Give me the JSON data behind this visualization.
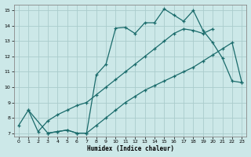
{
  "xlabel": "Humidex (Indice chaleur)",
  "bg_color": "#cce8e8",
  "grid_color": "#aacccc",
  "line_color": "#1a6b6b",
  "xlim": [
    -0.5,
    23.5
  ],
  "ylim": [
    6.8,
    15.4
  ],
  "xticks": [
    0,
    1,
    2,
    3,
    4,
    5,
    6,
    7,
    8,
    9,
    10,
    11,
    12,
    13,
    14,
    15,
    16,
    17,
    18,
    19,
    20,
    21,
    22,
    23
  ],
  "yticks": [
    7,
    8,
    9,
    10,
    11,
    12,
    13,
    14,
    15
  ],
  "line1_x": [
    0,
    1,
    3,
    4,
    5,
    6,
    7,
    8,
    9,
    10,
    11,
    12,
    13,
    14,
    15,
    16,
    17,
    18,
    19,
    20,
    21,
    22,
    23
  ],
  "line1_y": [
    7.5,
    8.5,
    7.0,
    7.1,
    7.2,
    7.0,
    7.0,
    7.5,
    8.0,
    8.5,
    9.0,
    9.4,
    9.8,
    10.1,
    10.4,
    10.7,
    11.0,
    11.3,
    11.7,
    12.1,
    12.5,
    12.9,
    10.3
  ],
  "line2_x": [
    3,
    4,
    5,
    6,
    7,
    8,
    9,
    10,
    11,
    12,
    13,
    14,
    15,
    16,
    17,
    18,
    19,
    20,
    21,
    22,
    23
  ],
  "line2_y": [
    7.0,
    7.1,
    7.2,
    7.0,
    7.0,
    10.8,
    11.5,
    13.85,
    13.9,
    13.5,
    14.2,
    14.2,
    15.1,
    14.7,
    14.3,
    15.0,
    13.7,
    12.9,
    11.9,
    10.4,
    10.3
  ],
  "line3_x": [
    1,
    2,
    3,
    4,
    5,
    6,
    7,
    8,
    9,
    10,
    11,
    12,
    13,
    14,
    15,
    16,
    17,
    18,
    19,
    20
  ],
  "line3_y": [
    8.5,
    7.1,
    7.8,
    8.2,
    8.5,
    8.8,
    9.0,
    9.5,
    10.0,
    10.5,
    11.0,
    11.5,
    12.0,
    12.5,
    13.0,
    13.5,
    13.8,
    13.7,
    13.5,
    13.8
  ]
}
